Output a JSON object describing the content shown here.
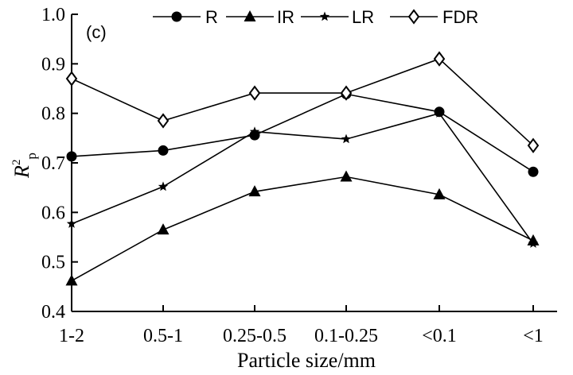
{
  "chart_data": {
    "type": "line",
    "panel_label": "(c)",
    "xlabel": "Particle size/mm",
    "ylabel_main": "R",
    "ylabel_sup": "2",
    "ylabel_sub": "p",
    "categories": [
      "1-2",
      "0.5-1",
      "0.25-0.5",
      "0.1-0.25",
      "<0.1",
      "<1"
    ],
    "ylim": [
      0.4,
      1.0
    ],
    "yticks": [
      "0.4",
      "0.5",
      "0.6",
      "0.7",
      "0.8",
      "0.9",
      "1.0"
    ],
    "grid": false,
    "legend_position": "top",
    "series": [
      {
        "name": "R",
        "marker": "circle",
        "values": [
          0.713,
          0.725,
          0.756,
          0.839,
          0.803,
          0.682
        ]
      },
      {
        "name": "IR",
        "marker": "triangle",
        "values": [
          0.462,
          0.565,
          0.642,
          0.672,
          0.636,
          0.543
        ]
      },
      {
        "name": "LR",
        "marker": "star",
        "values": [
          0.577,
          0.652,
          0.763,
          0.748,
          0.8,
          0.537
        ]
      },
      {
        "name": "FDR",
        "marker": "diamond",
        "values": [
          0.87,
          0.785,
          0.841,
          0.841,
          0.91,
          0.735
        ]
      }
    ]
  }
}
